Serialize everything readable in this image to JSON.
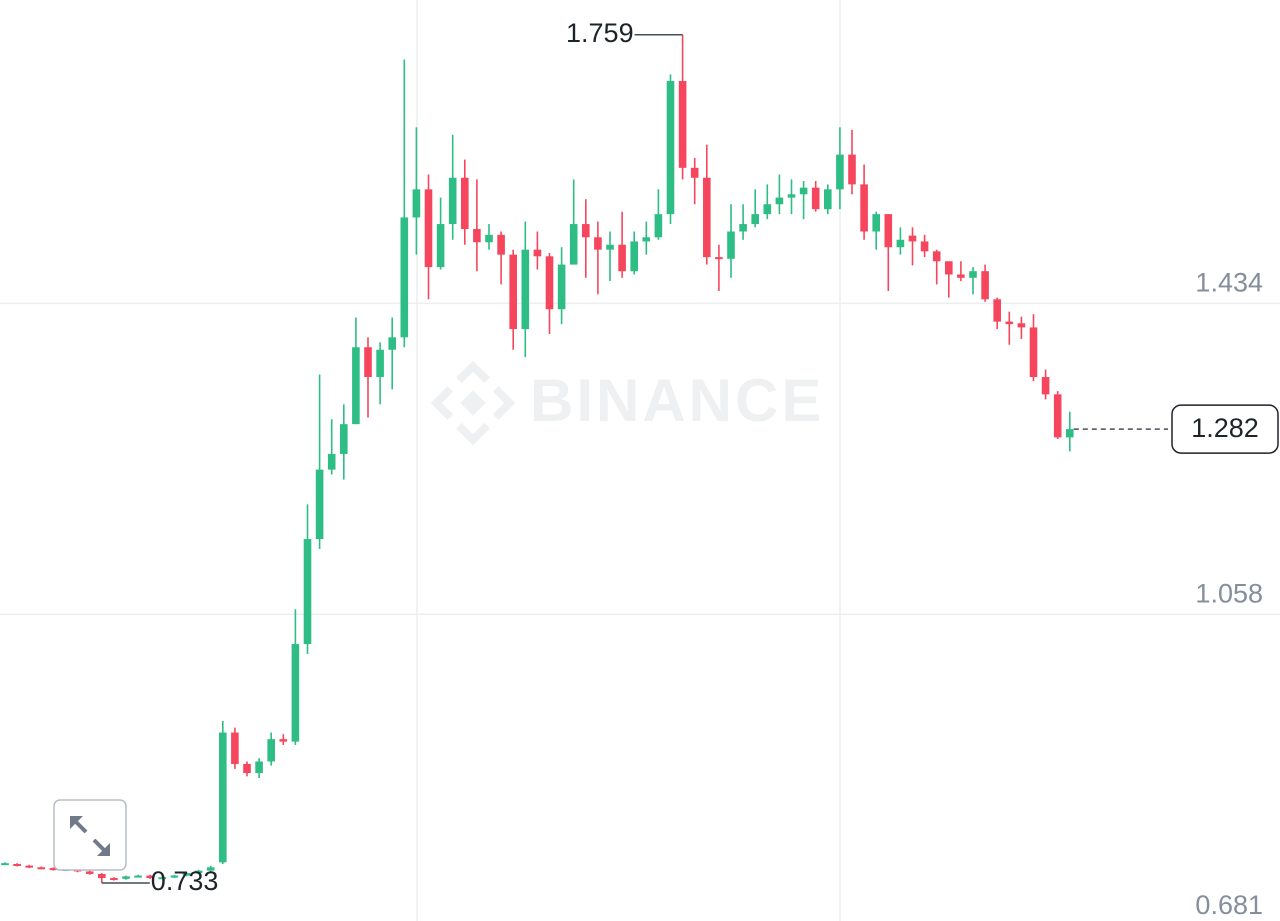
{
  "chart_data": {
    "type": "candlestick",
    "watermark": "BINANCE",
    "up_color": "#2ebd85",
    "down_color": "#f6465d",
    "grid": true,
    "ylim": [
      0.681,
      1.801
    ],
    "yticks": [
      0.681,
      1.058,
      1.434
    ],
    "open": [
      0.756,
      0.756,
      0.754,
      0.752,
      0.751,
      0.749,
      0.75,
      0.747,
      0.744,
      0.739,
      0.738,
      0.741,
      0.742,
      0.739,
      0.74,
      0.742,
      0.745,
      0.748,
      0.758,
      0.915,
      0.877,
      0.866,
      0.88,
      0.907,
      0.904,
      1.022,
      1.149,
      1.233,
      1.252,
      1.288,
      1.381,
      1.345,
      1.378,
      1.393,
      1.538,
      1.572,
      1.478,
      1.53,
      1.586,
      1.524,
      1.508,
      1.517,
      1.493,
      1.403,
      1.499,
      1.491,
      1.427,
      1.481,
      1.53,
      1.514,
      1.499,
      1.505,
      1.473,
      1.509,
      1.514,
      1.542,
      1.703,
      1.598,
      1.586,
      1.49,
      1.488,
      1.521,
      1.53,
      1.542,
      1.554,
      1.562,
      1.566,
      1.574,
      1.548,
      1.572,
      1.614,
      1.578,
      1.521,
      1.542,
      1.502,
      1.516,
      1.509,
      1.497,
      1.485,
      1.469,
      1.465,
      1.473,
      1.439,
      1.412,
      1.41,
      1.405,
      1.345,
      1.324,
      1.272
    ],
    "high": [
      0.758,
      0.757,
      0.755,
      0.753,
      0.752,
      0.751,
      0.751,
      0.748,
      0.745,
      0.74,
      0.742,
      0.743,
      0.743,
      0.741,
      0.743,
      0.746,
      0.749,
      0.754,
      0.929,
      0.921,
      0.88,
      0.884,
      0.915,
      0.913,
      1.064,
      1.191,
      1.348,
      1.294,
      1.312,
      1.417,
      1.393,
      1.387,
      1.417,
      1.729,
      1.647,
      1.59,
      1.562,
      1.638,
      1.608,
      1.584,
      1.53,
      1.521,
      1.499,
      1.533,
      1.521,
      1.495,
      1.502,
      1.584,
      1.56,
      1.533,
      1.521,
      1.545,
      1.521,
      1.533,
      1.572,
      1.711,
      1.759,
      1.61,
      1.626,
      1.505,
      1.554,
      1.554,
      1.572,
      1.578,
      1.59,
      1.584,
      1.582,
      1.582,
      1.578,
      1.647,
      1.644,
      1.602,
      1.545,
      1.542,
      1.526,
      1.526,
      1.517,
      1.499,
      1.485,
      1.485,
      1.478,
      1.481,
      1.441,
      1.424,
      1.418,
      1.421,
      1.354,
      1.328,
      1.303
    ],
    "low": [
      0.755,
      0.753,
      0.751,
      0.75,
      0.748,
      0.748,
      0.746,
      0.743,
      0.733,
      0.736,
      0.737,
      0.74,
      0.738,
      0.738,
      0.739,
      0.741,
      0.744,
      0.747,
      0.756,
      0.871,
      0.862,
      0.86,
      0.875,
      0.9,
      0.9,
      1.01,
      1.137,
      1.227,
      1.221,
      1.288,
      1.296,
      1.312,
      1.33,
      1.381,
      1.493,
      1.439,
      1.475,
      1.511,
      1.505,
      1.473,
      1.499,
      1.457,
      1.378,
      1.369,
      1.475,
      1.397,
      1.409,
      1.481,
      1.465,
      1.445,
      1.461,
      1.465,
      1.469,
      1.493,
      1.511,
      1.53,
      1.584,
      1.554,
      1.481,
      1.449,
      1.465,
      1.511,
      1.526,
      1.536,
      1.542,
      1.542,
      1.536,
      1.545,
      1.542,
      1.548,
      1.566,
      1.511,
      1.499,
      1.449,
      1.493,
      1.48,
      1.49,
      1.457,
      1.441,
      1.461,
      1.445,
      1.436,
      1.403,
      1.384,
      1.391,
      1.34,
      1.318,
      1.27,
      1.255
    ],
    "close": [
      0.757,
      0.754,
      0.752,
      0.751,
      0.749,
      0.75,
      0.747,
      0.744,
      0.739,
      0.738,
      0.741,
      0.742,
      0.739,
      0.74,
      0.742,
      0.745,
      0.748,
      0.752,
      0.915,
      0.877,
      0.866,
      0.88,
      0.907,
      0.904,
      1.022,
      1.149,
      1.233,
      1.252,
      1.288,
      1.381,
      1.345,
      1.378,
      1.393,
      1.538,
      1.572,
      1.478,
      1.53,
      1.586,
      1.524,
      1.508,
      1.517,
      1.493,
      1.403,
      1.499,
      1.491,
      1.427,
      1.481,
      1.53,
      1.514,
      1.499,
      1.505,
      1.473,
      1.509,
      1.514,
      1.542,
      1.703,
      1.598,
      1.586,
      1.49,
      1.488,
      1.521,
      1.53,
      1.542,
      1.554,
      1.562,
      1.566,
      1.574,
      1.548,
      1.572,
      1.614,
      1.578,
      1.521,
      1.542,
      1.502,
      1.511,
      1.509,
      1.497,
      1.485,
      1.469,
      1.465,
      1.473,
      1.439,
      1.412,
      1.409,
      1.405,
      1.345,
      1.324,
      1.272,
      1.282
    ]
  }
}
